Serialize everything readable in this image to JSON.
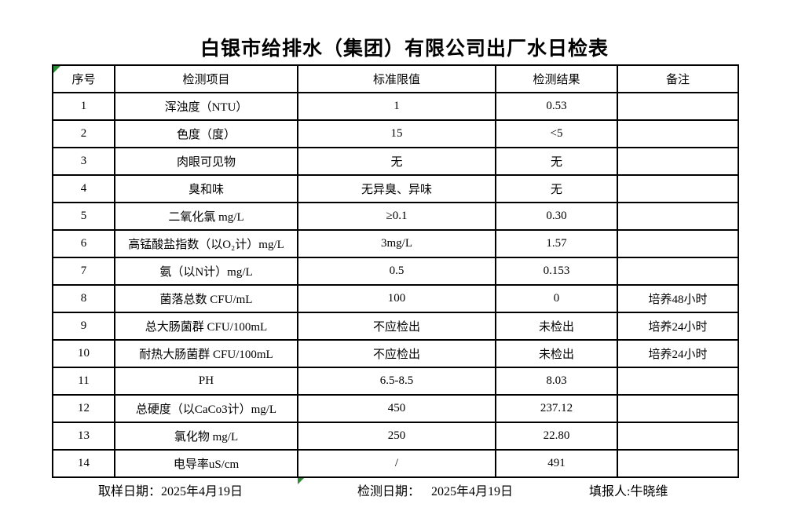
{
  "title": "白银市给排水（集团）有限公司出厂水日检表",
  "table": {
    "headers": [
      "序号",
      "检测项目",
      "标准限值",
      "检测结果",
      "备注"
    ],
    "rows": [
      {
        "no": "1",
        "item": "浑浊度（NTU）",
        "limit": "1",
        "result": "0.53",
        "remark": ""
      },
      {
        "no": "2",
        "item": "色度（度）",
        "limit": "15",
        "result": "<5",
        "remark": ""
      },
      {
        "no": "3",
        "item": "肉眼可见物",
        "limit": "无",
        "result": "无",
        "remark": ""
      },
      {
        "no": "4",
        "item": "臭和味",
        "limit": "无异臭、异味",
        "result": "无",
        "remark": ""
      },
      {
        "no": "5",
        "item": "二氧化氯 mg/L",
        "limit": "≥0.1",
        "result": "0.30",
        "remark": ""
      },
      {
        "no": "6",
        "item": "高锰酸盐指数（以O₂计）mg/L",
        "limit": "3mg/L",
        "result": "1.57",
        "remark": ""
      },
      {
        "no": "7",
        "item": "氨（以N计）mg/L",
        "limit": "0.5",
        "result": "0.153",
        "remark": ""
      },
      {
        "no": "8",
        "item": "菌落总数 CFU/mL",
        "limit": "100",
        "result": "0",
        "remark": "培养48小时"
      },
      {
        "no": "9",
        "item": "总大肠菌群 CFU/100mL",
        "limit": "不应检出",
        "result": "未检出",
        "remark": "培养24小时"
      },
      {
        "no": "10",
        "item": "耐热大肠菌群 CFU/100mL",
        "limit": "不应检出",
        "result": "未检出",
        "remark": "培养24小时"
      },
      {
        "no": "11",
        "item": "PH",
        "limit": "6.5-8.5",
        "result": "8.03",
        "remark": ""
      },
      {
        "no": "12",
        "item": "总硬度（以CaCo3计）mg/L",
        "limit": "450",
        "result": "237.12",
        "remark": ""
      },
      {
        "no": "13",
        "item": "氯化物 mg/L",
        "limit": "250",
        "result": "22.80",
        "remark": ""
      },
      {
        "no": "14",
        "item": "电导率uS/cm",
        "limit": "/",
        "result": "491",
        "remark": ""
      }
    ]
  },
  "footer": {
    "sampling_label": "取样日期：",
    "sampling_date": "2025年4月19日",
    "test_label": "检测日期：",
    "test_date": "2025年4月19日",
    "reporter_label": "填报人:",
    "reporter_name": "牛晓维"
  },
  "icons": {
    "corner_marker": "excel-green-corner-triangle",
    "bottom_marker": "excel-green-flag-triangle"
  },
  "colors": {
    "marker_green": "#2e8b35",
    "border": "#000000",
    "text": "#000000",
    "background": "#ffffff"
  }
}
